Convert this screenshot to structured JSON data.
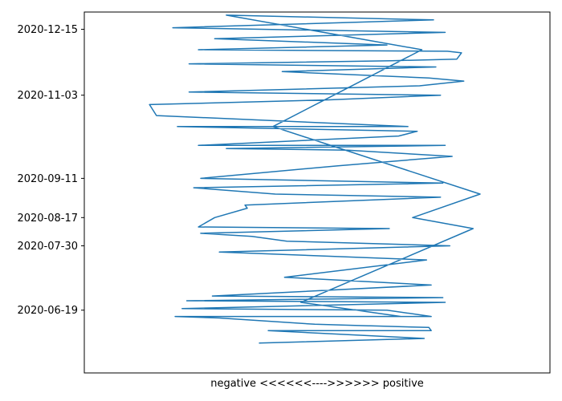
{
  "chart_data": {
    "type": "line",
    "title": "",
    "xlabel": "negative <<<<<<---->>>>>> positive",
    "ylabel": "",
    "xlim": [
      -1,
      1
    ],
    "ylim": [
      "2020-05-10",
      "2020-12-26"
    ],
    "x_ticks_shown": false,
    "grid": false,
    "legend": "none",
    "series_color": "#1f77b4",
    "y_ticks": [
      "2020-06-19",
      "2020-07-30",
      "2020-08-17",
      "2020-09-11",
      "2020-11-03",
      "2020-12-15"
    ],
    "series": [
      {
        "x": [
          -0.25,
          0.46,
          -0.21,
          0.49,
          0.48,
          0.23,
          0.22,
          -0.01,
          -0.42,
          -0.61,
          0.49,
          0.3,
          -0.58,
          0.55,
          -0.56,
          0.54,
          -0.45,
          0.49,
          -0.14,
          0.47,
          -0.42,
          0.57,
          -0.13,
          -0.28,
          -0.5,
          0.31,
          -0.51,
          -0.44,
          -0.3,
          -0.31,
          0.53,
          -0.18,
          -0.53,
          0.54,
          -0.5,
          0.09,
          0.58,
          0.13,
          -0.39,
          0.55,
          -0.51,
          0.35,
          0.43,
          -0.6,
          0.39,
          -0.69,
          -0.72,
          0.04,
          0.53,
          -0.55,
          0.44,
          0.63,
          0.48,
          -0.15,
          0.51,
          -0.55,
          0.32,
          0.6,
          0.62,
          0.56,
          -0.51,
          0.3,
          -0.44,
          0.55,
          -0.62,
          0.5,
          -0.39,
          0.45,
          -0.19,
          0.7,
          0.41,
          0.67,
          -0.07,
          0.36
        ],
        "y": [
          "2020-05-29",
          "2020-06-01",
          "2020-06-06",
          "2020-06-06",
          "2020-06-08",
          "2020-06-09",
          "2020-06-09",
          "2020-06-10",
          "2020-06-14",
          "2020-06-15",
          "2020-06-15",
          "2020-06-19",
          "2020-06-20",
          "2020-06-24",
          "2020-06-25",
          "2020-06-27",
          "2020-06-28",
          "2020-07-05",
          "2020-07-10",
          "2020-07-21",
          "2020-07-26",
          "2020-07-30",
          "2020-08-02",
          "2020-08-05",
          "2020-08-07",
          "2020-08-10",
          "2020-08-11",
          "2020-08-17",
          "2020-08-23",
          "2020-08-25",
          "2020-08-30",
          "2020-09-01",
          "2020-09-05",
          "2020-09-08",
          "2020-09-11",
          "2020-09-19",
          "2020-09-25",
          "2020-09-29",
          "2020-09-30",
          "2020-10-02",
          "2020-10-02",
          "2020-10-08",
          "2020-10-11",
          "2020-10-14",
          "2020-10-14",
          "2020-10-21",
          "2020-10-28",
          "2020-10-31",
          "2020-11-03",
          "2020-11-05",
          "2020-11-09",
          "2020-11-12",
          "2020-11-14",
          "2020-11-18",
          "2020-11-21",
          "2020-11-23",
          "2020-11-25",
          "2020-11-26",
          "2020-11-30",
          "2020-12-01",
          "2020-12-02",
          "2020-12-05",
          "2020-12-09",
          "2020-12-13",
          "2020-12-16",
          "2020-12-21",
          "2020-12-24",
          "2020-12-02",
          "2020-10-14",
          "2020-09-01",
          "2020-08-17",
          "2020-08-10",
          "2020-06-24",
          "2020-06-15"
        ]
      }
    ]
  }
}
